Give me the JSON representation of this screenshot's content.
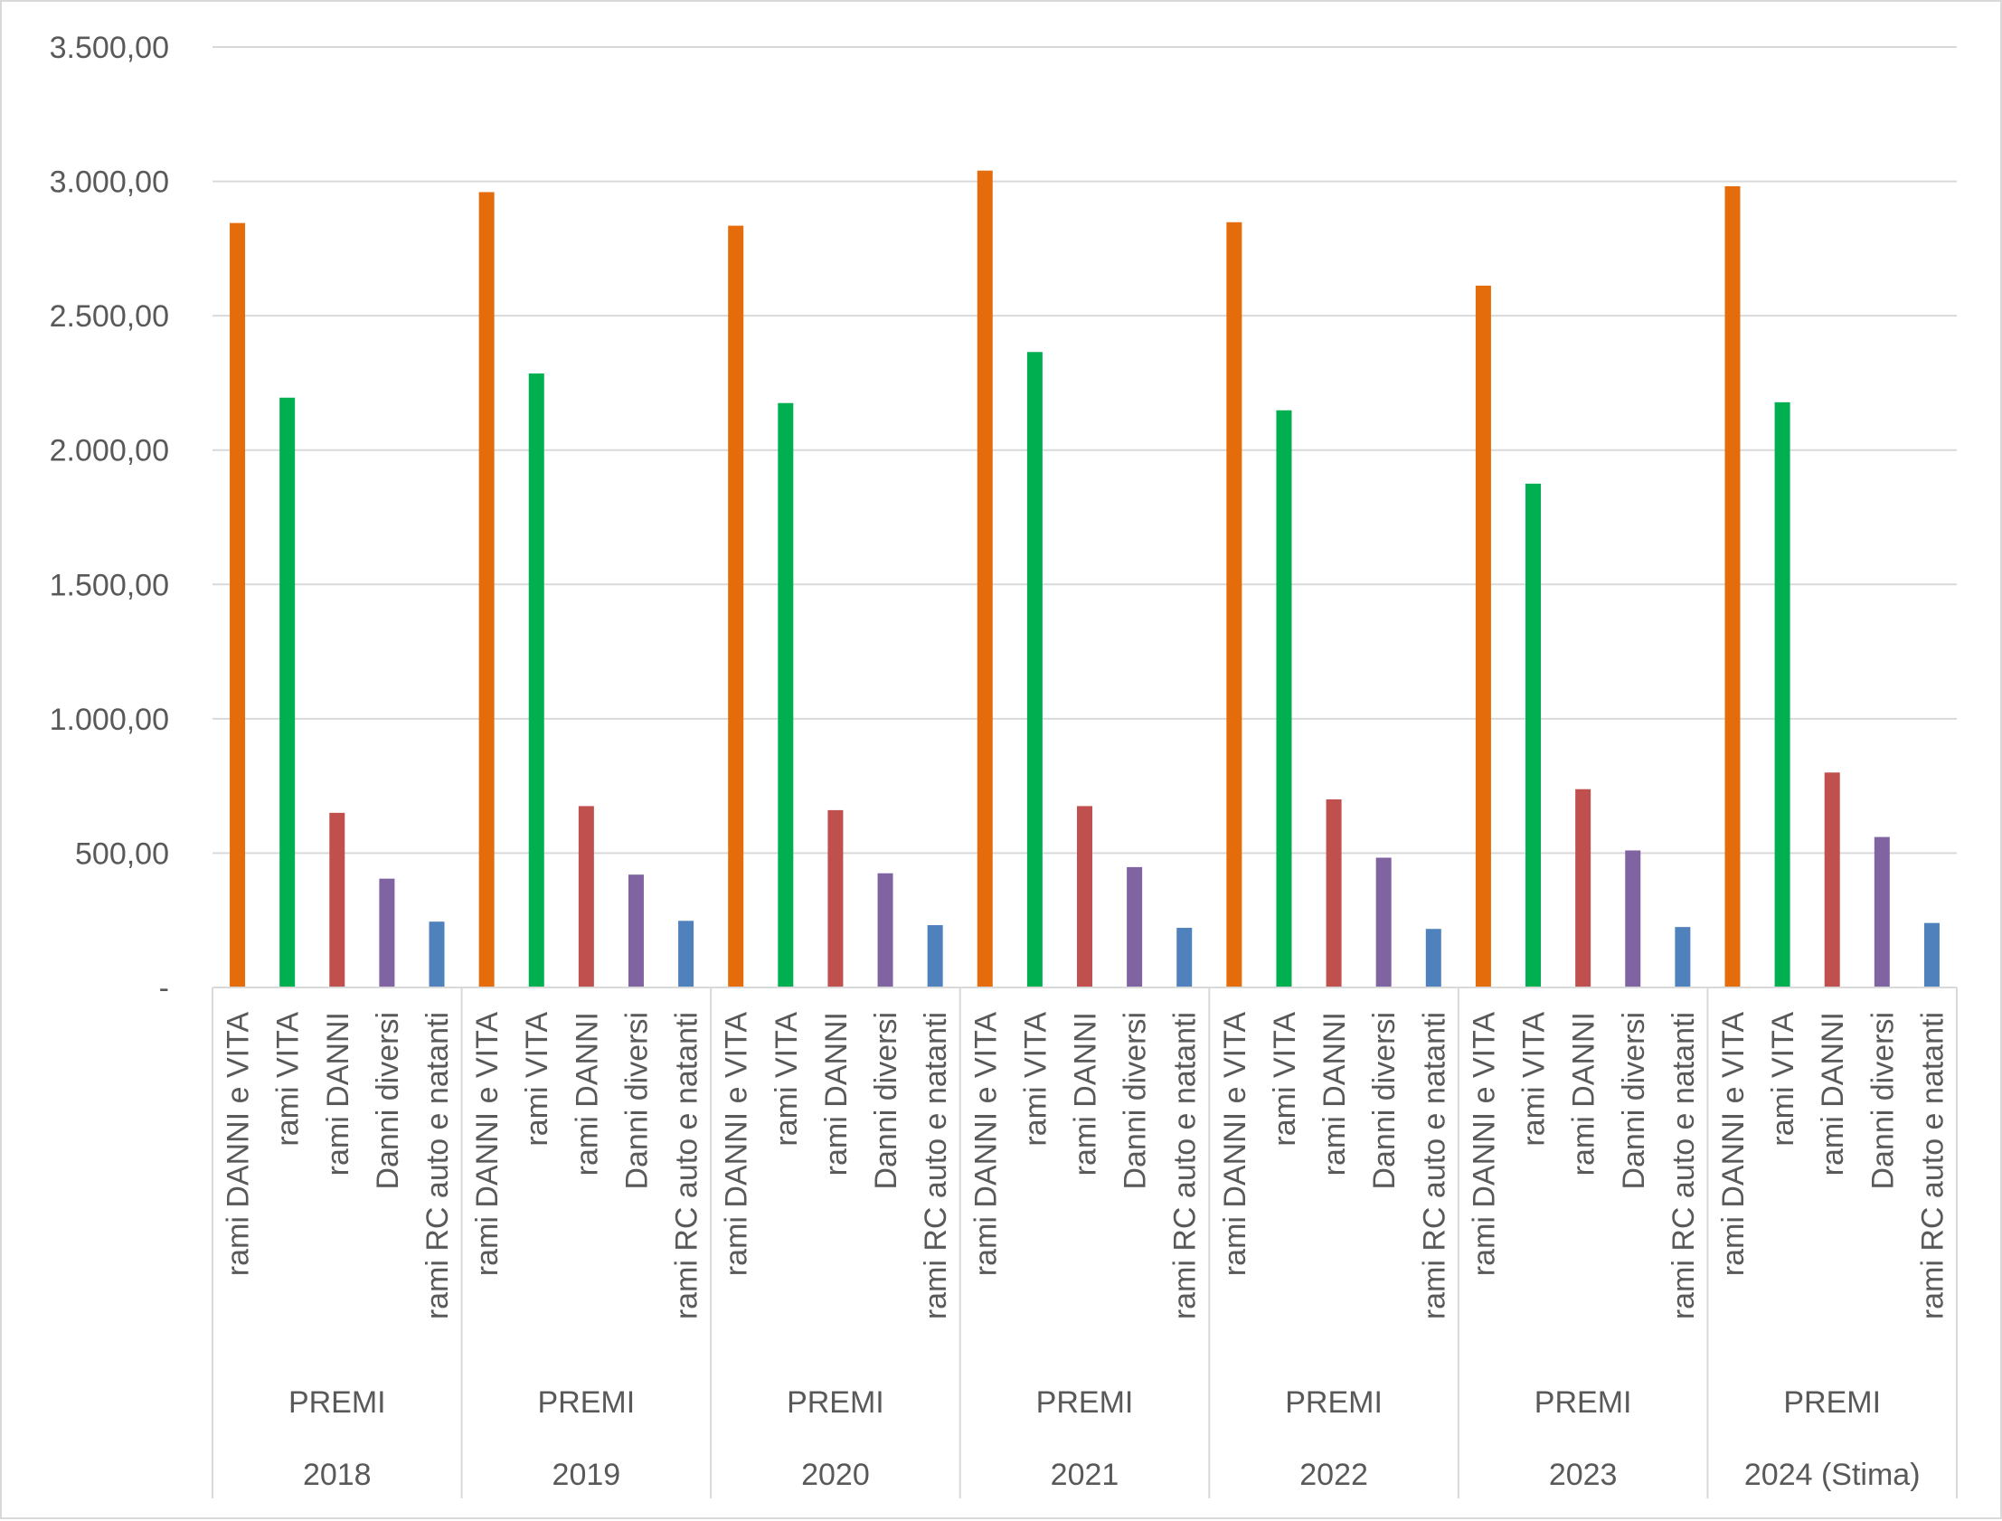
{
  "chart_data": {
    "type": "bar",
    "title": "",
    "xlabel": "",
    "ylabel": "",
    "ylim": [
      0,
      3500
    ],
    "y_ticks": [
      "-",
      "500,00",
      "1.000,00",
      "1.500,00",
      "2.000,00",
      "2.500,00",
      "3.000,00",
      "3.500,00"
    ],
    "grid": true,
    "legend": "none",
    "sub_categories": [
      "rami DANNI e VITA",
      "rami VITA",
      "rami DANNI",
      "Danni diversi",
      "rami RC auto e natanti"
    ],
    "colors": [
      "#e46c0a",
      "#00b050",
      "#c0504d",
      "#8064a2",
      "#4f81bd"
    ],
    "groups": [
      {
        "year": "2018",
        "label": "PREMI",
        "values": [
          2845,
          2195,
          650,
          405,
          245
        ]
      },
      {
        "year": "2019",
        "label": "PREMI",
        "values": [
          2960,
          2285,
          675,
          420,
          248
        ]
      },
      {
        "year": "2020",
        "label": "PREMI",
        "values": [
          2835,
          2175,
          660,
          425,
          232
        ]
      },
      {
        "year": "2021",
        "label": "PREMI",
        "values": [
          3040,
          2365,
          675,
          448,
          222
        ]
      },
      {
        "year": "2022",
        "label": "PREMI",
        "values": [
          2848,
          2148,
          700,
          483,
          218
        ]
      },
      {
        "year": "2023",
        "label": "PREMI",
        "values": [
          2612,
          1875,
          738,
          510,
          225
        ]
      },
      {
        "year": "2024 (Stima)",
        "label": "PREMI",
        "values": [
          2982,
          2178,
          800,
          560,
          240
        ]
      }
    ]
  }
}
